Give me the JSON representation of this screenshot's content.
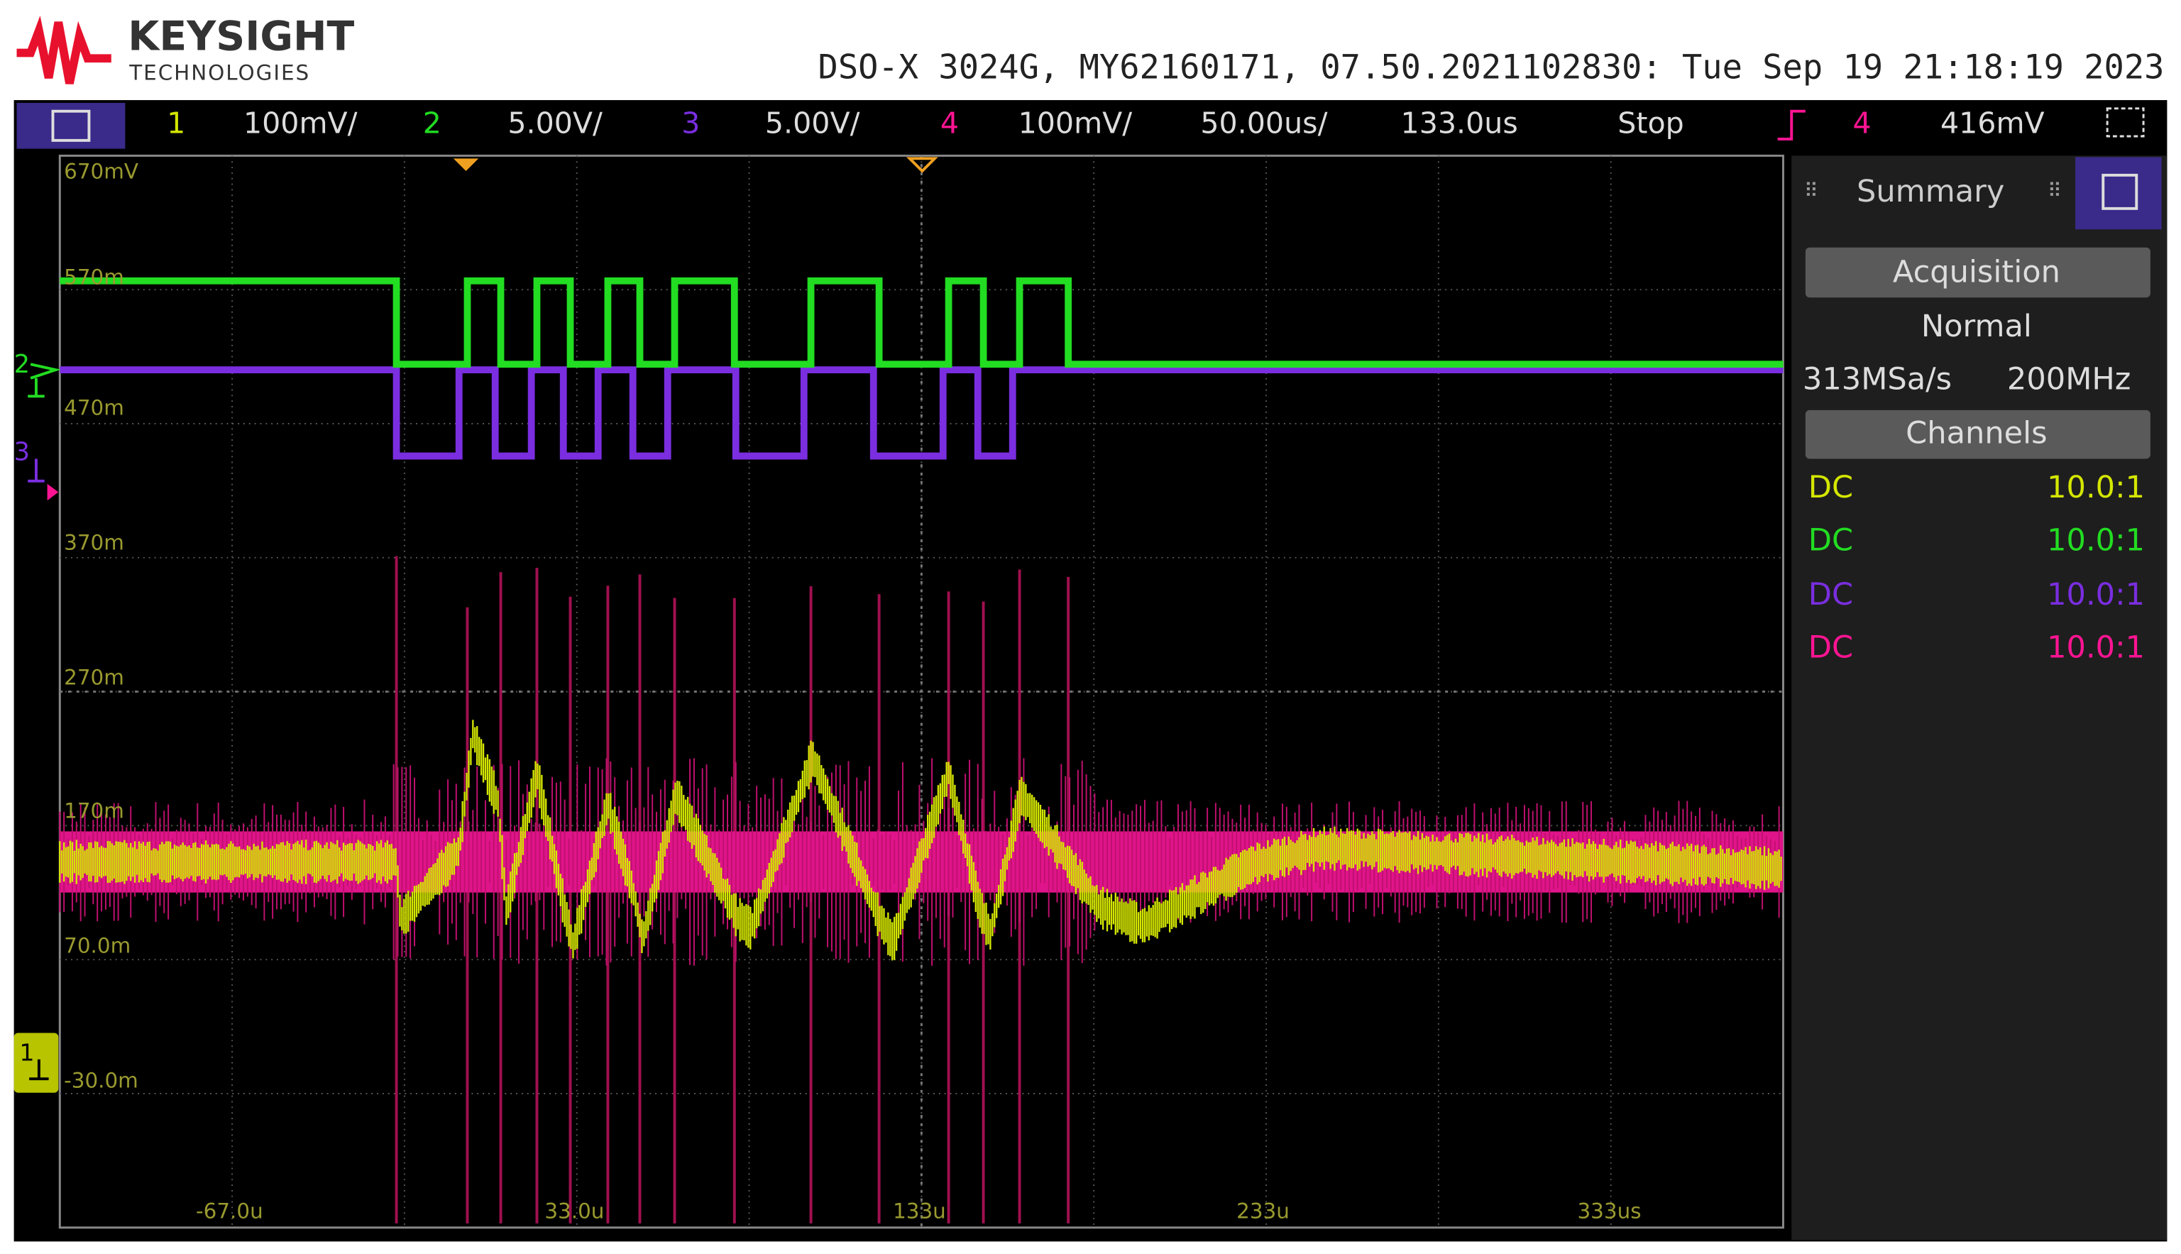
{
  "header": {
    "brand": "KEYSIGHT",
    "brand_sub": "TECHNOLOGIES",
    "instrument_info": "DSO-X 3024G, MY62160171, 07.50.2021102830: Tue Sep 19 21:18:19 2023"
  },
  "status_bar": {
    "channels": [
      {
        "number": "1",
        "scale": "100mV/"
      },
      {
        "number": "2",
        "scale": "5.00V/"
      },
      {
        "number": "3",
        "scale": "5.00V/"
      },
      {
        "number": "4",
        "scale": "100mV/"
      }
    ],
    "timebase": "50.00us/",
    "delay": "133.0us",
    "run_state": "Stop",
    "trigger_channel": "4",
    "trigger_level": "416mV"
  },
  "display": {
    "y_labels": [
      "670mV",
      "570m",
      "470m",
      "370m",
      "270m",
      "170m",
      "70.0m",
      "-30.0m"
    ],
    "x_labels": [
      "-67.0u",
      "33.0u",
      "133u",
      "233u",
      "333us"
    ],
    "channel_markers": [
      "2",
      "3",
      "1"
    ]
  },
  "side_panel": {
    "tab": "Summary",
    "acquisition": {
      "title": "Acquisition",
      "mode": "Normal",
      "sample_rate": "313MSa/s",
      "bandwidth": "200MHz"
    },
    "channels": {
      "title": "Channels",
      "rows": [
        {
          "coupling": "DC",
          "probe": "10.0:1"
        },
        {
          "coupling": "DC",
          "probe": "10.0:1"
        },
        {
          "coupling": "DC",
          "probe": "10.0:1"
        },
        {
          "coupling": "DC",
          "probe": "10.0:1"
        }
      ]
    }
  }
}
